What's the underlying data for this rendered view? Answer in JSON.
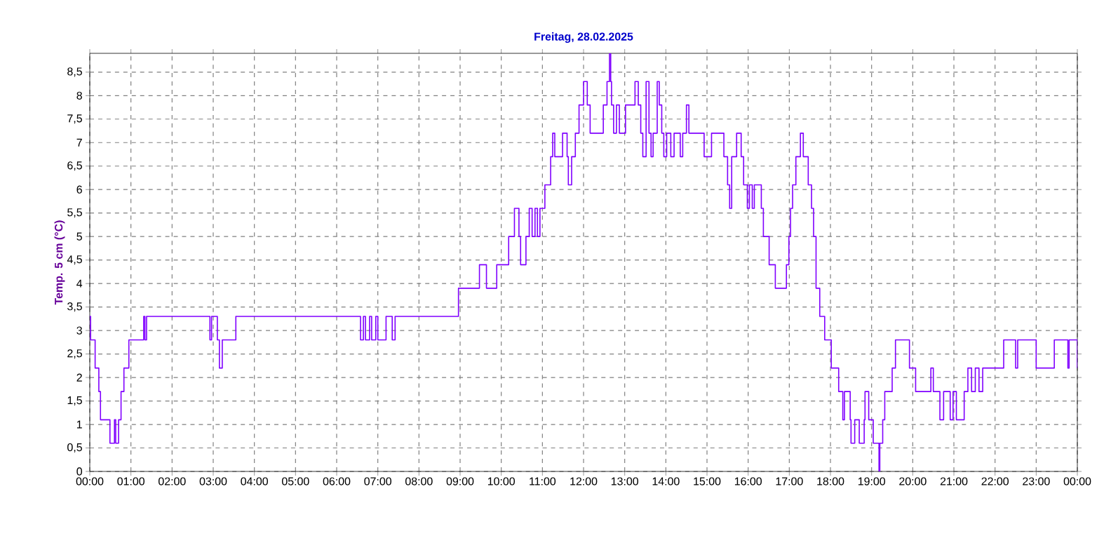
{
  "chart_data": {
    "type": "step",
    "title": "Freitag, 28.02.2025",
    "ylabel": "Temp. 5 cm (°C)",
    "color": "#8000ff",
    "grid": true,
    "xlim": [
      0,
      24
    ],
    "ylim": [
      0,
      8.9
    ],
    "xticks": [
      {
        "value": 0,
        "label": "00:00"
      },
      {
        "value": 1,
        "label": "01:00"
      },
      {
        "value": 2,
        "label": "02:00"
      },
      {
        "value": 3,
        "label": "03:00"
      },
      {
        "value": 4,
        "label": "04:00"
      },
      {
        "value": 5,
        "label": "05:00"
      },
      {
        "value": 6,
        "label": "06:00"
      },
      {
        "value": 7,
        "label": "07:00"
      },
      {
        "value": 8,
        "label": "08:00"
      },
      {
        "value": 9,
        "label": "09:00"
      },
      {
        "value": 10,
        "label": "10:00"
      },
      {
        "value": 11,
        "label": "11:00"
      },
      {
        "value": 12,
        "label": "12:00"
      },
      {
        "value": 13,
        "label": "13:00"
      },
      {
        "value": 14,
        "label": "14:00"
      },
      {
        "value": 15,
        "label": "15:00"
      },
      {
        "value": 16,
        "label": "16:00"
      },
      {
        "value": 17,
        "label": "17:00"
      },
      {
        "value": 18,
        "label": "18:00"
      },
      {
        "value": 19,
        "label": "19:00"
      },
      {
        "value": 20,
        "label": "20:00"
      },
      {
        "value": 21,
        "label": "21:00"
      },
      {
        "value": 22,
        "label": "22:00"
      },
      {
        "value": 23,
        "label": "23:00"
      },
      {
        "value": 24,
        "label": "00:00"
      }
    ],
    "yticks": [
      0,
      {
        "value": 0.5,
        "label": "0,5"
      },
      1,
      {
        "value": 1.5,
        "label": "1,5"
      },
      2,
      {
        "value": 2.5,
        "label": "2,5"
      },
      3,
      {
        "value": 3.5,
        "label": "3,5"
      },
      4,
      {
        "value": 4.5,
        "label": "4,5"
      },
      5,
      {
        "value": 5.5,
        "label": "5,5"
      },
      6,
      {
        "value": 6.5,
        "label": "6,5"
      },
      7,
      {
        "value": 7.5,
        "label": "7,5"
      },
      8,
      {
        "value": 8.5,
        "label": "8,5"
      }
    ],
    "x": [
      0,
      0.02,
      0.13,
      0.22,
      0.26,
      0.49,
      0.6,
      0.63,
      0.7,
      0.76,
      0.83,
      0.95,
      1.31,
      1.34,
      1.38,
      2.92,
      2.96,
      3.1,
      3.15,
      3.22,
      3.55,
      6.58,
      6.65,
      6.7,
      6.8,
      6.85,
      6.95,
      7.0,
      7.2,
      7.35,
      7.42,
      8.96,
      9.47,
      9.64,
      9.89,
      10.18,
      10.32,
      10.43,
      10.47,
      10.6,
      10.68,
      10.75,
      10.82,
      10.88,
      10.94,
      11.06,
      11.2,
      11.25,
      11.3,
      11.49,
      11.6,
      11.63,
      11.71,
      11.8,
      11.89,
      12.0,
      12.09,
      12.16,
      12.48,
      12.57,
      12.63,
      12.66,
      12.68,
      12.73,
      12.8,
      12.87,
      13.02,
      13.25,
      13.33,
      13.39,
      13.44,
      13.52,
      13.59,
      13.64,
      13.69,
      13.79,
      13.84,
      13.9,
      13.95,
      14.02,
      14.12,
      14.2,
      14.35,
      14.41,
      14.5,
      14.56,
      14.93,
      15.11,
      15.41,
      15.5,
      15.55,
      15.6,
      15.72,
      15.83,
      15.89,
      15.98,
      16.03,
      16.1,
      16.15,
      16.32,
      16.37,
      16.51,
      16.66,
      16.93,
      16.99,
      17.03,
      17.08,
      17.16,
      17.27,
      17.34,
      17.46,
      17.54,
      17.59,
      17.65,
      17.74,
      17.86,
      18.02,
      18.2,
      18.3,
      18.34,
      18.48,
      18.5,
      18.59,
      18.7,
      18.82,
      18.84,
      18.93,
      19.04,
      19.18,
      19.2,
      19.27,
      19.32,
      19.5,
      19.58,
      19.92,
      20.07,
      20.44,
      20.5,
      20.66,
      20.75,
      20.91,
      20.98,
      21.06,
      21.25,
      21.34,
      21.43,
      21.52,
      21.61,
      21.7,
      22.21,
      22.5,
      22.55,
      23.0,
      23.44,
      23.77,
      23.8,
      24.0
    ],
    "values": [
      3.3,
      2.8,
      2.2,
      1.7,
      1.1,
      0.6,
      1.1,
      0.6,
      1.1,
      1.7,
      2.2,
      2.8,
      3.3,
      2.8,
      3.3,
      2.8,
      3.3,
      2.8,
      2.2,
      2.8,
      3.3,
      2.8,
      3.3,
      2.8,
      3.3,
      2.8,
      3.3,
      2.8,
      3.3,
      2.8,
      3.3,
      3.9,
      4.4,
      3.9,
      4.4,
      5.0,
      5.6,
      5.0,
      4.4,
      5.0,
      5.6,
      5.0,
      5.6,
      5.0,
      5.6,
      6.1,
      6.7,
      7.2,
      6.7,
      7.2,
      6.7,
      6.1,
      6.7,
      7.2,
      7.8,
      8.3,
      7.8,
      7.2,
      7.8,
      8.3,
      8.9,
      8.3,
      7.8,
      7.2,
      7.8,
      7.2,
      7.8,
      8.3,
      7.8,
      7.2,
      6.7,
      8.3,
      7.2,
      6.7,
      7.2,
      8.3,
      7.8,
      7.2,
      6.7,
      7.2,
      6.7,
      7.2,
      6.7,
      7.2,
      7.8,
      7.2,
      6.7,
      7.2,
      6.7,
      6.1,
      5.6,
      6.7,
      7.2,
      6.7,
      6.1,
      5.6,
      6.1,
      5.6,
      6.1,
      5.6,
      5.0,
      4.4,
      3.9,
      4.4,
      5.0,
      5.6,
      6.1,
      6.7,
      7.2,
      6.7,
      6.1,
      5.6,
      5.0,
      3.9,
      3.3,
      2.8,
      2.2,
      1.7,
      1.1,
      1.7,
      1.1,
      0.6,
      1.1,
      0.6,
      1.1,
      1.7,
      1.1,
      0.6,
      0.0,
      0.6,
      1.1,
      1.7,
      2.2,
      2.8,
      2.2,
      1.7,
      2.2,
      1.7,
      1.1,
      1.7,
      1.1,
      1.7,
      1.1,
      1.7,
      2.2,
      1.7,
      2.2,
      1.7,
      2.2,
      2.8,
      2.2,
      2.8,
      2.2,
      2.8,
      2.2,
      2.8,
      2.2
    ]
  }
}
